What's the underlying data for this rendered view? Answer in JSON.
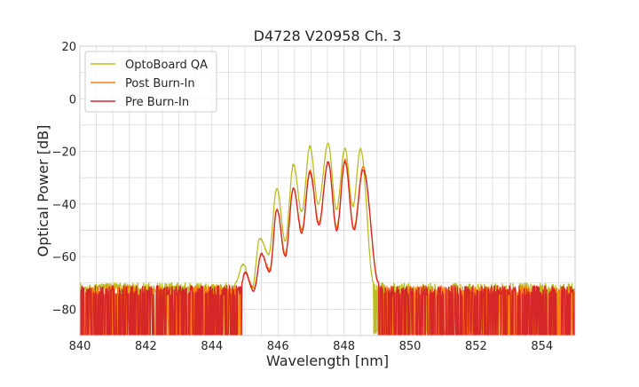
{
  "chart_data": {
    "type": "line",
    "title": "D4728 V20958 Ch. 3",
    "xlabel": "Wavelength [nm]",
    "ylabel": "Optical Power [dB]",
    "xlim": [
      840,
      855
    ],
    "ylim": [
      -90,
      20
    ],
    "x_ticks": [
      840,
      842,
      844,
      846,
      848,
      850,
      852,
      854
    ],
    "x_tick_labels": [
      "840",
      "842",
      "844",
      "846",
      "848",
      "850",
      "852",
      "854"
    ],
    "y_ticks": [
      20,
      0,
      -20,
      -40,
      -60,
      -80
    ],
    "y_tick_labels": [
      "20",
      "0",
      "−20",
      "−40",
      "−60",
      "−80"
    ],
    "grid": true,
    "legend_position": "top-left",
    "series": [
      {
        "name": "OptoBoard QA",
        "color": "#bcbd22",
        "peaks": [
          [
            844.95,
            -63
          ],
          [
            845.45,
            -53
          ],
          [
            845.97,
            -34
          ],
          [
            846.47,
            -25
          ],
          [
            846.97,
            -18
          ],
          [
            847.52,
            -17
          ],
          [
            848.03,
            -19
          ],
          [
            848.5,
            -19
          ]
        ],
        "valleys": [
          [
            845.22,
            -72
          ],
          [
            845.72,
            -59
          ],
          [
            846.22,
            -54
          ],
          [
            846.72,
            -43
          ],
          [
            847.22,
            -40
          ],
          [
            847.77,
            -42
          ],
          [
            848.27,
            -41
          ]
        ],
        "band": [
          844.7,
          848.9
        ],
        "noise_floor": [
          -72,
          -88
        ]
      },
      {
        "name": "Post Burn-In",
        "color": "#ff7f0e",
        "peaks": [
          [
            845.0,
            -66
          ],
          [
            845.5,
            -59
          ],
          [
            845.97,
            -42
          ],
          [
            846.47,
            -34
          ],
          [
            846.97,
            -27
          ],
          [
            847.52,
            -24
          ],
          [
            848.03,
            -23
          ],
          [
            848.58,
            -26
          ]
        ],
        "valleys": [
          [
            845.27,
            -72
          ],
          [
            845.75,
            -65
          ],
          [
            846.22,
            -59
          ],
          [
            846.72,
            -50
          ],
          [
            847.24,
            -47
          ],
          [
            847.78,
            -49
          ],
          [
            848.3,
            -49
          ]
        ],
        "band": [
          844.9,
          849.05
        ],
        "noise_floor": [
          -73,
          -90
        ]
      },
      {
        "name": "Pre Burn-In",
        "color": "#d62728",
        "peaks": [
          [
            845.0,
            -66
          ],
          [
            845.5,
            -59
          ],
          [
            845.97,
            -42
          ],
          [
            846.47,
            -34
          ],
          [
            846.97,
            -28
          ],
          [
            847.52,
            -24
          ],
          [
            848.03,
            -24
          ],
          [
            848.58,
            -27
          ]
        ],
        "valleys": [
          [
            845.27,
            -73
          ],
          [
            845.75,
            -66
          ],
          [
            846.22,
            -60
          ],
          [
            846.72,
            -51
          ],
          [
            847.24,
            -48
          ],
          [
            847.78,
            -50
          ],
          [
            848.3,
            -50
          ]
        ],
        "band": [
          844.9,
          849.05
        ],
        "noise_floor": [
          -73,
          -90
        ]
      }
    ]
  }
}
